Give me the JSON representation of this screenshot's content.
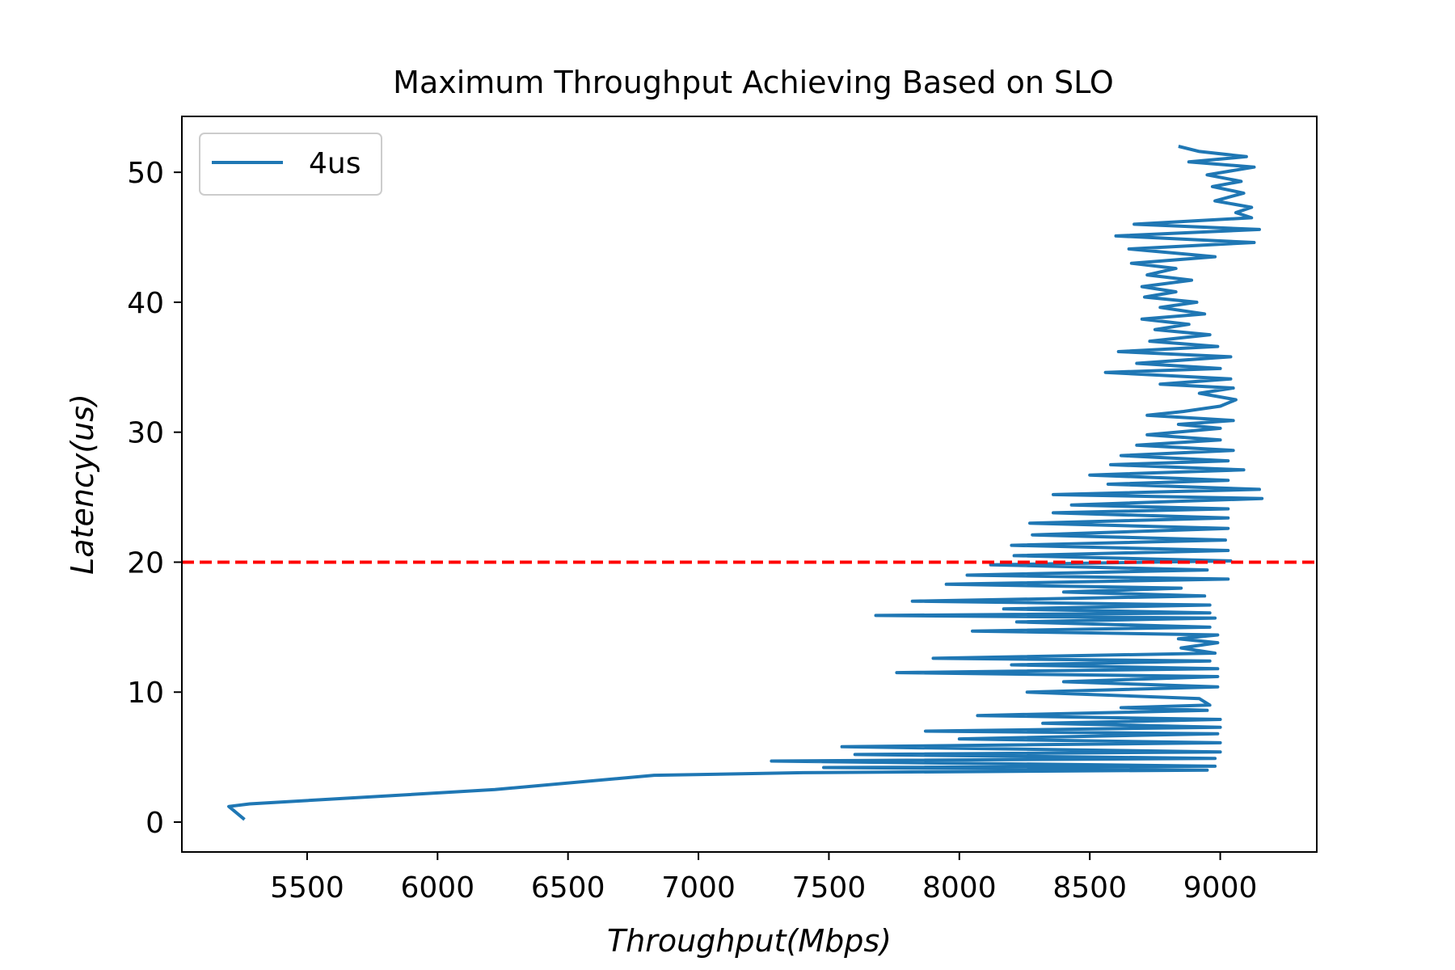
{
  "chart_data": {
    "type": "line",
    "title": "Maximum Throughput Achieving Based on SLO",
    "xlabel": "Throughput(Mbps)",
    "ylabel": "Latency(us)",
    "xlim": [
      5020,
      9370
    ],
    "ylim": [
      -2.3,
      54.3
    ],
    "x_ticks": [
      5500,
      6000,
      6500,
      7000,
      7500,
      8000,
      8500,
      9000
    ],
    "y_ticks": [
      0,
      10,
      20,
      30,
      40,
      50
    ],
    "grid": false,
    "legend_position": "upper-left",
    "slo_line": {
      "y": 20,
      "color": "#ff0000",
      "style": "dashed"
    },
    "series": [
      {
        "name": "4us",
        "color": "#1f77b4",
        "points": [
          [
            5260,
            0.2
          ],
          [
            5200,
            1.2
          ],
          [
            5280,
            1.4
          ],
          [
            6220,
            2.5
          ],
          [
            6830,
            3.6
          ],
          [
            7400,
            3.8
          ],
          [
            8950,
            4.0
          ],
          [
            7480,
            4.2
          ],
          [
            8980,
            4.3
          ],
          [
            7280,
            4.7
          ],
          [
            8980,
            4.9
          ],
          [
            7600,
            5.2
          ],
          [
            9000,
            5.4
          ],
          [
            7550,
            5.8
          ],
          [
            9000,
            6.1
          ],
          [
            8000,
            6.4
          ],
          [
            8990,
            6.8
          ],
          [
            7870,
            7.0
          ],
          [
            9000,
            7.3
          ],
          [
            8320,
            7.6
          ],
          [
            9000,
            7.9
          ],
          [
            8070,
            8.2
          ],
          [
            8950,
            8.6
          ],
          [
            8620,
            8.8
          ],
          [
            8960,
            9.0
          ],
          [
            8920,
            9.5
          ],
          [
            8260,
            10.0
          ],
          [
            8990,
            10.4
          ],
          [
            8400,
            10.8
          ],
          [
            8990,
            11.2
          ],
          [
            7760,
            11.5
          ],
          [
            8990,
            11.8
          ],
          [
            8200,
            12.1
          ],
          [
            8960,
            12.4
          ],
          [
            7900,
            12.6
          ],
          [
            8980,
            13.0
          ],
          [
            8850,
            13.4
          ],
          [
            8990,
            13.8
          ],
          [
            8840,
            14.1
          ],
          [
            8990,
            14.4
          ],
          [
            8050,
            14.7
          ],
          [
            8960,
            15.0
          ],
          [
            8220,
            15.4
          ],
          [
            8980,
            15.7
          ],
          [
            7680,
            15.9
          ],
          [
            8960,
            16.1
          ],
          [
            8170,
            16.4
          ],
          [
            8960,
            16.7
          ],
          [
            7820,
            17.0
          ],
          [
            8940,
            17.4
          ],
          [
            8400,
            17.7
          ],
          [
            8850,
            18.0
          ],
          [
            7950,
            18.3
          ],
          [
            9030,
            18.7
          ],
          [
            8030,
            19.0
          ],
          [
            8950,
            19.4
          ],
          [
            8120,
            19.8
          ],
          [
            9040,
            20.1
          ],
          [
            8210,
            20.5
          ],
          [
            9030,
            20.9
          ],
          [
            8200,
            21.3
          ],
          [
            9020,
            21.7
          ],
          [
            8280,
            22.1
          ],
          [
            9030,
            22.6
          ],
          [
            8270,
            23.0
          ],
          [
            9030,
            23.4
          ],
          [
            8360,
            23.8
          ],
          [
            9030,
            24.1
          ],
          [
            8430,
            24.4
          ],
          [
            9160,
            24.9
          ],
          [
            8360,
            25.2
          ],
          [
            9150,
            25.6
          ],
          [
            8570,
            26.0
          ],
          [
            9030,
            26.3
          ],
          [
            8500,
            26.7
          ],
          [
            9090,
            27.1
          ],
          [
            8580,
            27.5
          ],
          [
            9030,
            27.8
          ],
          [
            8620,
            28.2
          ],
          [
            9050,
            28.6
          ],
          [
            8680,
            29.0
          ],
          [
            9000,
            29.4
          ],
          [
            8720,
            29.8
          ],
          [
            9000,
            30.3
          ],
          [
            8840,
            30.6
          ],
          [
            9050,
            30.9
          ],
          [
            8720,
            31.3
          ],
          [
            8860,
            31.6
          ],
          [
            9000,
            32.0
          ],
          [
            9060,
            32.5
          ],
          [
            8920,
            33.0
          ],
          [
            9050,
            33.4
          ],
          [
            8770,
            33.7
          ],
          [
            9040,
            34.1
          ],
          [
            8560,
            34.6
          ],
          [
            9000,
            34.9
          ],
          [
            8680,
            35.3
          ],
          [
            9040,
            35.8
          ],
          [
            8610,
            36.2
          ],
          [
            8990,
            36.6
          ],
          [
            8730,
            37.0
          ],
          [
            8960,
            37.5
          ],
          [
            8750,
            37.9
          ],
          [
            8880,
            38.3
          ],
          [
            8700,
            38.7
          ],
          [
            8940,
            39.1
          ],
          [
            8770,
            39.6
          ],
          [
            8910,
            40.0
          ],
          [
            8710,
            40.4
          ],
          [
            8830,
            40.8
          ],
          [
            8700,
            41.2
          ],
          [
            8890,
            41.7
          ],
          [
            8720,
            42.1
          ],
          [
            8830,
            42.6
          ],
          [
            8660,
            43.0
          ],
          [
            8980,
            43.5
          ],
          [
            8650,
            44.1
          ],
          [
            9130,
            44.6
          ],
          [
            8600,
            45.1
          ],
          [
            9150,
            45.6
          ],
          [
            8670,
            46.0
          ],
          [
            9120,
            46.5
          ],
          [
            9060,
            46.9
          ],
          [
            9120,
            47.3
          ],
          [
            8980,
            47.8
          ],
          [
            9090,
            48.4
          ],
          [
            8970,
            48.9
          ],
          [
            9080,
            49.3
          ],
          [
            8950,
            49.8
          ],
          [
            9130,
            50.4
          ],
          [
            8880,
            50.8
          ],
          [
            9100,
            51.2
          ],
          [
            8920,
            51.6
          ],
          [
            8840,
            52.0
          ]
        ]
      }
    ]
  }
}
